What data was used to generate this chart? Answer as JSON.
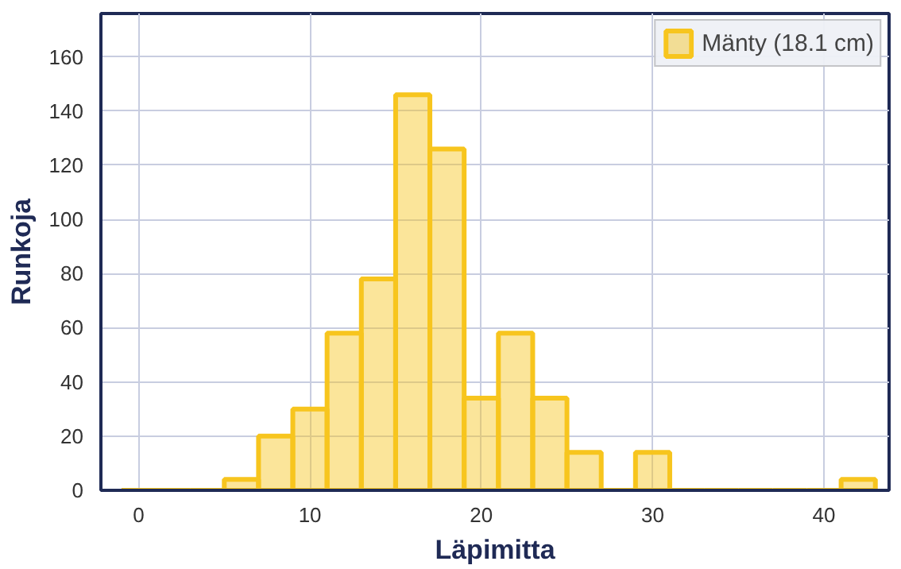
{
  "chart_data": {
    "type": "histogram",
    "xlabel": "Läpimitta",
    "ylabel": "Runkoja",
    "bins": [
      -1,
      1,
      3,
      5,
      7,
      9,
      11,
      13,
      15,
      17,
      19,
      21,
      23,
      25,
      27,
      29,
      31,
      33,
      35,
      37,
      39,
      41,
      43
    ],
    "series": [
      {
        "name": "Mänty (18.1 cm)",
        "color": "#f7c51e",
        "values": [
          0,
          0,
          0,
          4,
          20,
          30,
          58,
          78,
          146,
          126,
          34,
          58,
          34,
          14,
          0,
          14,
          0,
          0,
          0,
          0,
          0,
          4
        ]
      }
    ],
    "xlim": [
      -2.2,
      43.8
    ],
    "xticks": [
      0,
      10,
      20,
      30,
      40
    ],
    "ylim": [
      0,
      176
    ],
    "yticks": [
      0,
      20,
      40,
      60,
      80,
      100,
      120,
      140,
      160
    ],
    "grid": true,
    "legend": "top right"
  }
}
